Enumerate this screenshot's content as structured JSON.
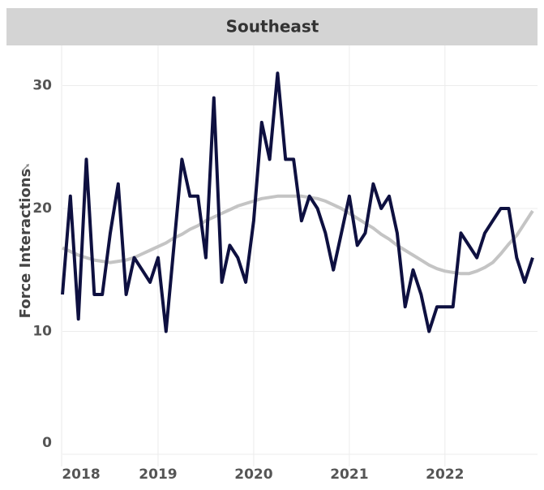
{
  "chart_data": {
    "type": "line",
    "title": "Southeast",
    "y_label": "Force Interactions",
    "categories": [
      "2018",
      null,
      null,
      null,
      null,
      null,
      null,
      null,
      null,
      null,
      null,
      null,
      "2019",
      null,
      null,
      null,
      null,
      null,
      null,
      null,
      null,
      null,
      null,
      null,
      "2020",
      null,
      null,
      null,
      null,
      null,
      null,
      null,
      null,
      null,
      null,
      null,
      "2021",
      null,
      null,
      null,
      null,
      null,
      null,
      null,
      null,
      null,
      null,
      null,
      "2022",
      null,
      null,
      null,
      null,
      null,
      null,
      null,
      null,
      null,
      null,
      null
    ],
    "series": [
      {
        "color": "#c4c4c4",
        "values": [
          16.8,
          16.5,
          16.2,
          16.0,
          15.8,
          15.7,
          15.6,
          15.7,
          15.8,
          16.0,
          16.3,
          16.6,
          16.9,
          17.2,
          17.6,
          17.9,
          18.3,
          18.6,
          19.0,
          19.3,
          19.6,
          19.9,
          20.2,
          20.4,
          20.6,
          20.8,
          20.9,
          21.0,
          21.0,
          21.0,
          21.0,
          20.9,
          20.8,
          20.6,
          20.3,
          20.0,
          19.6,
          19.2,
          18.8,
          18.4,
          17.9,
          17.5,
          17.0,
          16.6,
          16.2,
          15.8,
          15.4,
          15.1,
          14.9,
          14.8,
          14.7,
          14.7,
          14.9,
          15.2,
          15.6,
          16.3,
          17.1,
          17.8,
          18.8,
          19.8
        ]
      },
      {
        "color": "#0e1040",
        "values": [
          13,
          21,
          11,
          24,
          13,
          13,
          18,
          22,
          13,
          16,
          15,
          14,
          16,
          10,
          17,
          24,
          21,
          21,
          16,
          29,
          14,
          17,
          16,
          14,
          19,
          27,
          24,
          31,
          24,
          24,
          19,
          21,
          20,
          18,
          15,
          18,
          21,
          17,
          18,
          22,
          20,
          21,
          18,
          12,
          15,
          13,
          10,
          12,
          12,
          12,
          18,
          17,
          16,
          18,
          19,
          20,
          20,
          16,
          14,
          16
        ]
      }
    ],
    "ylim": [
      0,
      33
    ],
    "yticks": [
      0,
      10,
      20,
      30
    ],
    "grid": true
  }
}
